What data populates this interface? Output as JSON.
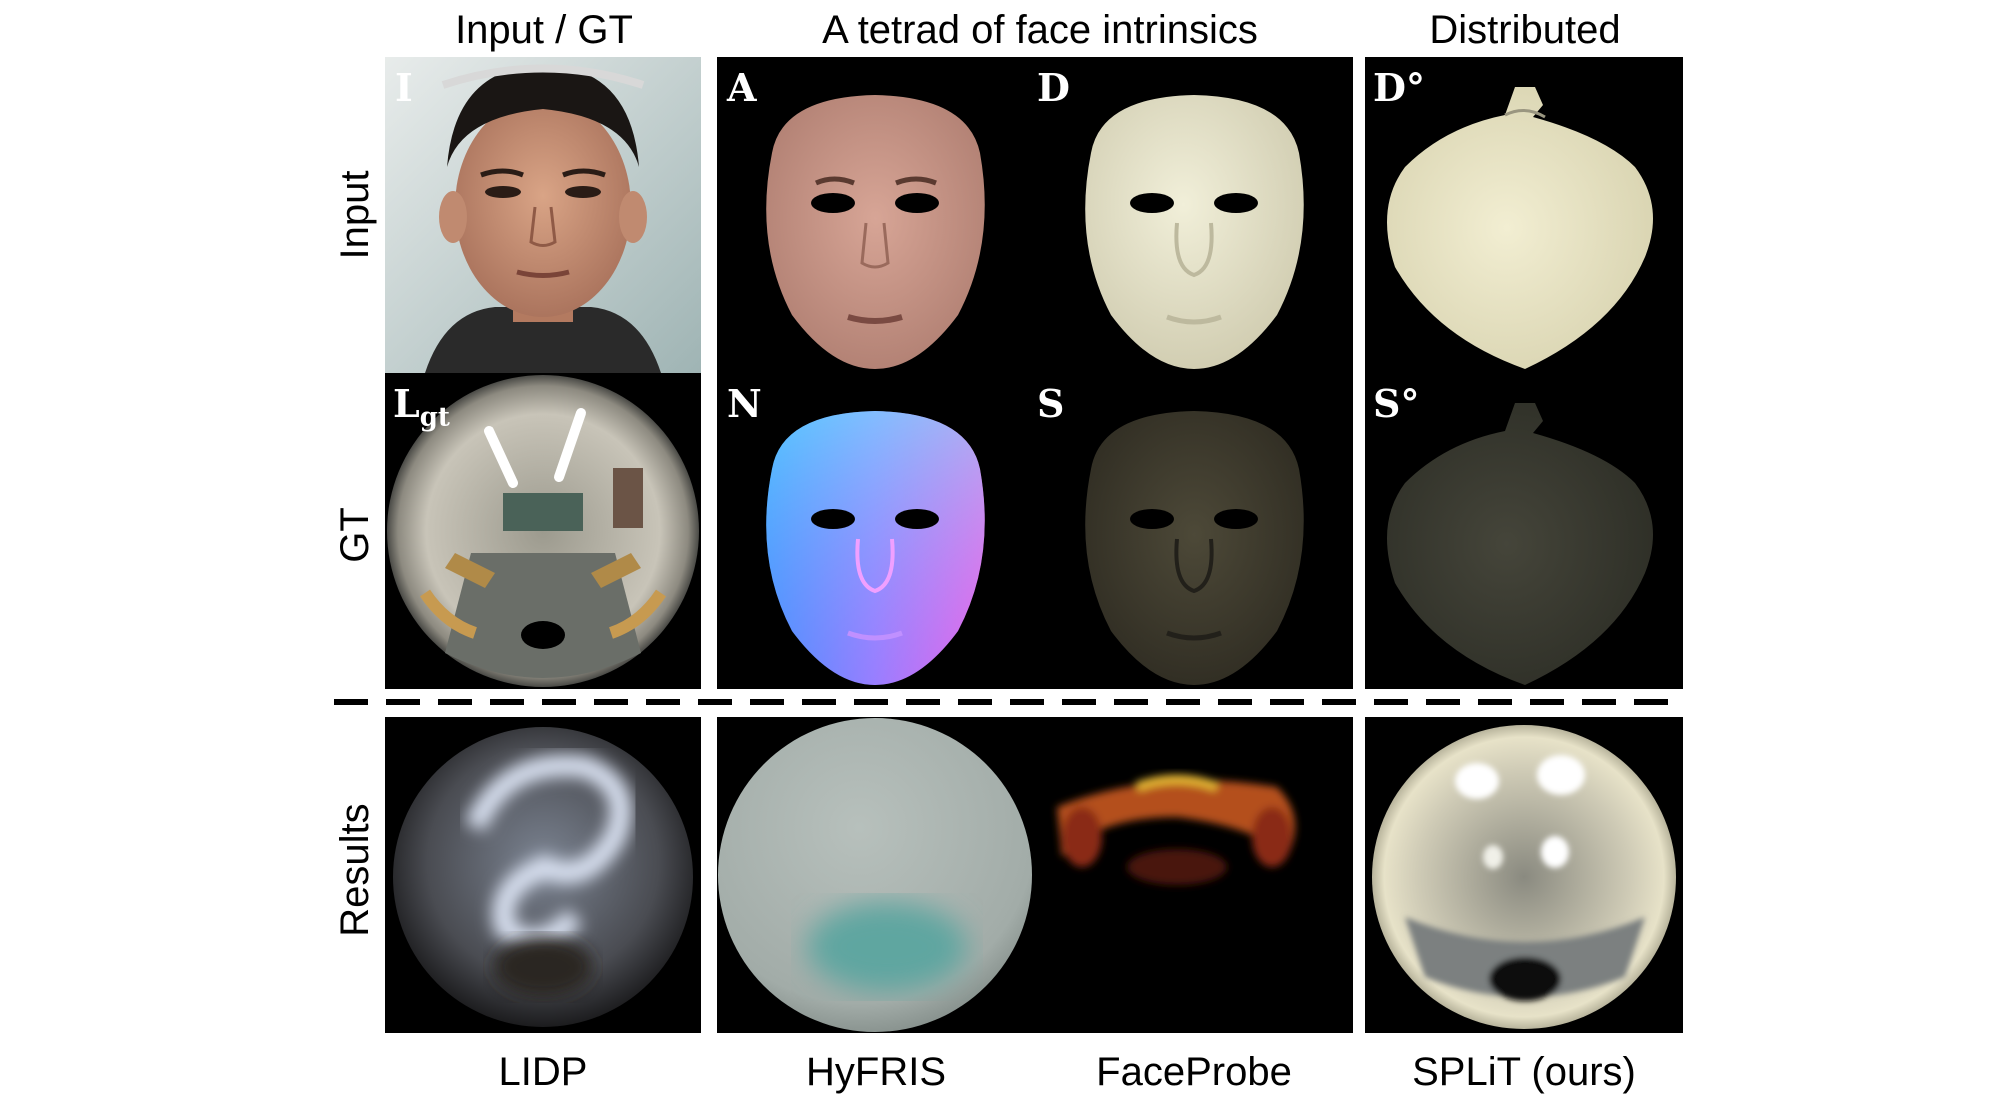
{
  "column_headers": {
    "input_gt": "Input / GT",
    "tetrad": "A tetrad of face intrinsics",
    "distributed": "Distributed"
  },
  "row_headers": {
    "input": "Input",
    "gt": "GT",
    "results": "Results"
  },
  "panel_labels": {
    "I": "I",
    "L": "L",
    "L_sub": "gt",
    "A": "A",
    "D": "D",
    "N": "N",
    "S": "S",
    "D_dist": "D°",
    "S_dist": "S°"
  },
  "method_captions": {
    "lidp": "LIDP",
    "hyfris": "HyFRIS",
    "faceprobe": "FaceProbe",
    "split": "SPLiT (ours)"
  },
  "colors": {
    "panel_background": "#000000",
    "albedo_skin": "#c9978a",
    "diffuse_plaster": "#e4e1c8",
    "shading_dark": "#3d3a2c",
    "distributed_diffuse": "#eae6c6",
    "distributed_shading": "#3a3a30",
    "hyfris_sphere": "#a9b5b0",
    "faceprobe_glow": "#c0481e"
  }
}
